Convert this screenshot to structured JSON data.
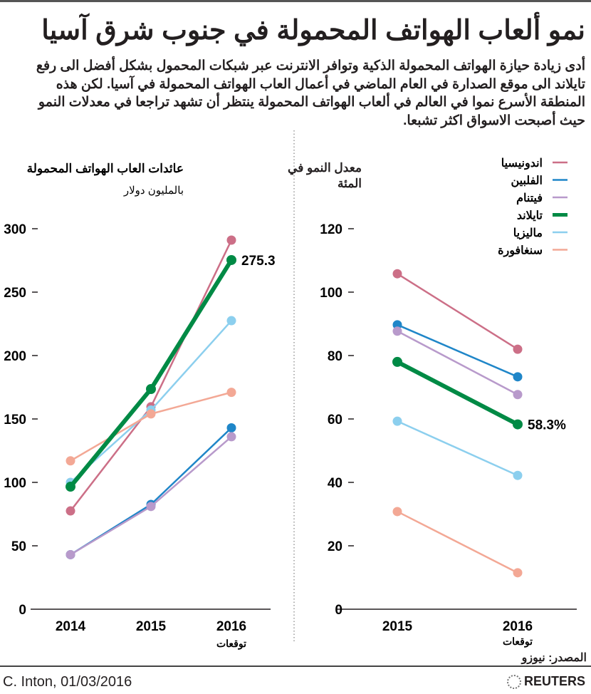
{
  "title": "نمو ألعاب الهواتف المحمولة في جنوب شرق آسيا",
  "intro_lines": [
    "أدى زيادة حيازة الهواتف المحمولة الذكية وتوافر الانترنت عبر شبكات المحمول بشكل أفضل الى رفع",
    "تايلاند الى موقع الصدارة في العام الماضي في أعمال العاب الهواتف المحمولة في آسيا. لكن هذه",
    "المنطقة الأسرع نموا في العالم في ألعاب الهواتف المحمولة ينتظر أن تشهد تراجعا في معدلات النمو",
    "حيث أصبحت الاسواق اكثر تشبعا."
  ],
  "legend": [
    {
      "name": "اندونيسيا",
      "color": "#cc6f87"
    },
    {
      "name": "الفلبين",
      "color": "#1f86c8"
    },
    {
      "name": "فيتنام",
      "color": "#b89acb"
    },
    {
      "name": "تايلاند",
      "color": "#008a45"
    },
    {
      "name": "ماليزيا",
      "color": "#8ccfee"
    },
    {
      "name": "سنغافورة",
      "color": "#f3a895"
    }
  ],
  "forecast_label": "توقعات",
  "source": "المصدر: نيوزو",
  "credit": "C. Inton,  01/03/2016",
  "brand": "REUTERS",
  "chart_data": [
    {
      "type": "line",
      "title": "عائدات العاب الهواتف المحمولة",
      "ylabel": "بالمليون دولار",
      "categories": [
        "2014",
        "2015",
        "2016"
      ],
      "ylim": [
        0,
        300
      ],
      "yticks": [
        0,
        50,
        100,
        150,
        200,
        250,
        300
      ],
      "grid": false,
      "series": [
        {
          "name": "اندونيسيا",
          "values": [
            77.5,
            159.6,
            291
          ]
        },
        {
          "name": "الفلبين",
          "values": [
            43,
            82.6,
            143
          ]
        },
        {
          "name": "فيتنام",
          "values": [
            43,
            81,
            136
          ]
        },
        {
          "name": "تايلاند",
          "values": [
            96.6,
            173.6,
            275.3
          ],
          "highlight": true
        },
        {
          "name": "ماليزيا",
          "values": [
            100,
            157,
            227.5
          ]
        },
        {
          "name": "سنغافورة",
          "values": [
            117,
            154,
            171
          ]
        }
      ],
      "annotation": "275.3"
    },
    {
      "type": "line",
      "title": "معدل النمو في المئة",
      "categories": [
        "2015",
        "2016"
      ],
      "ylim": [
        0,
        120
      ],
      "yticks": [
        0,
        20,
        40,
        60,
        80,
        100,
        120
      ],
      "grid": false,
      "series": [
        {
          "name": "اندونيسيا",
          "values": [
            105.8,
            82
          ]
        },
        {
          "name": "الفلبين",
          "values": [
            89.7,
            73.3
          ]
        },
        {
          "name": "فيتنام",
          "values": [
            87.7,
            67.7
          ]
        },
        {
          "name": "تايلاند",
          "values": [
            78,
            58.3
          ],
          "highlight": true
        },
        {
          "name": "ماليزيا",
          "values": [
            59.3,
            42.2
          ]
        },
        {
          "name": "سنغافورة",
          "values": [
            30.8,
            11.5
          ]
        }
      ],
      "annotation": "58.3%",
      "legend_position": "top-right"
    }
  ]
}
